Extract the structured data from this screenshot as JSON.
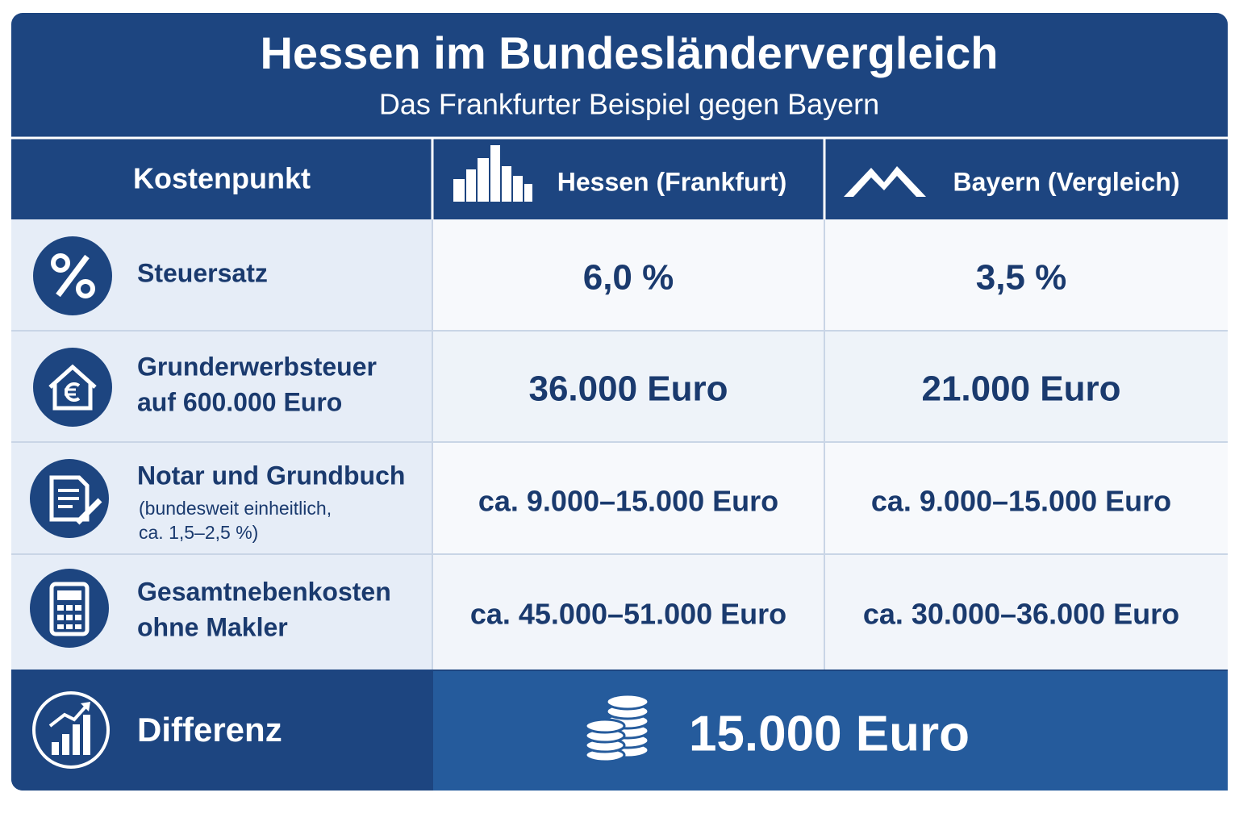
{
  "header": {
    "title": "Hessen im Bundesländervergleich",
    "subtitle": "Das Frankfurter Beispiel gegen Bayern"
  },
  "table": {
    "columns": [
      "Kostenpunkt",
      "Hessen (Frankfurt)",
      "Bayern (Vergleich)"
    ],
    "rows": [
      {
        "label": [
          "Steuersatz"
        ],
        "hessen": "6,0 %",
        "bayern": "3,5 %"
      },
      {
        "label": [
          "Grunderwerbsteuer",
          "auf 600.000 Euro"
        ],
        "hessen": "36.000 Euro",
        "bayern": "21.000 Euro"
      },
      {
        "label": [
          "Notar und Grundbuch"
        ],
        "note": [
          "(bundesweit einheitlich,",
          "ca. 1,5–2,5 %)"
        ],
        "hessen": "ca. 9.000–15.000 Euro",
        "bayern": "ca. 9.000–15.000 Euro"
      },
      {
        "label": [
          "Gesamtnebenkosten",
          "ohne Makler"
        ],
        "hessen": "ca. 45.000–51.000 Euro",
        "bayern": "ca. 30.000–36.000 Euro"
      }
    ]
  },
  "footer": {
    "label": "Differenz",
    "value": "15.000 Euro"
  }
}
